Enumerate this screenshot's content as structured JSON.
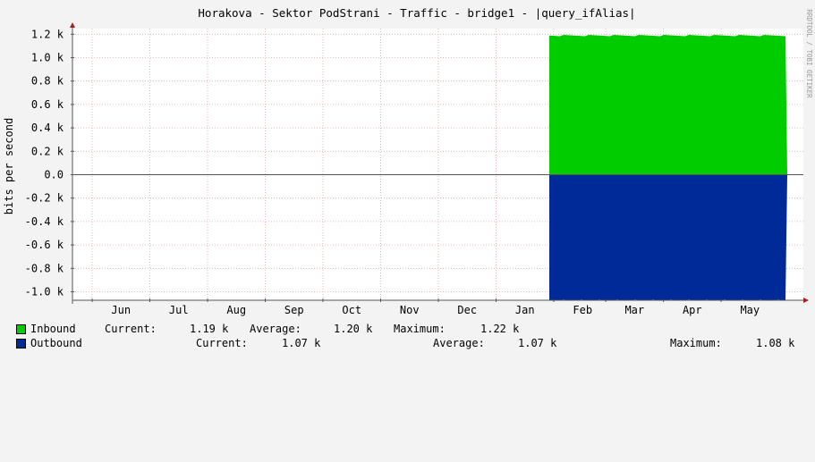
{
  "watermark": "RRDTOOL / TOBI OETIKER",
  "colors": {
    "background": "#f3f3f3",
    "plot_background": "#ffffff",
    "grid": "#e4a6a6",
    "axis": "#555555",
    "arrow": "#a02020",
    "inbound": "#00cc00",
    "outbound": "#002a97"
  },
  "chart_data": {
    "type": "area",
    "title": "Horakova - Sektor PodStrani - Traffic - bridge1 - |query_ifAlias|",
    "ylabel": "bits per second",
    "xlabel": "",
    "ylim": [
      -1080,
      1260
    ],
    "y_ticks": [
      {
        "value": 1200,
        "label": "1.2 k"
      },
      {
        "value": 1000,
        "label": "1.0 k"
      },
      {
        "value": 800,
        "label": "0.8 k"
      },
      {
        "value": 600,
        "label": "0.6 k"
      },
      {
        "value": 400,
        "label": "0.4 k"
      },
      {
        "value": 200,
        "label": "0.2 k"
      },
      {
        "value": 0,
        "label": "0.0"
      },
      {
        "value": -200,
        "label": "-0.2 k"
      },
      {
        "value": -400,
        "label": "-0.4 k"
      },
      {
        "value": -600,
        "label": "-0.6 k"
      },
      {
        "value": -800,
        "label": "-0.8 k"
      },
      {
        "value": -1000,
        "label": "-1.0 k"
      }
    ],
    "xlim": [
      0,
      12.5
    ],
    "months": [
      {
        "label": "Jun",
        "start": 0.0
      },
      {
        "label": "Jul",
        "start": 1.0
      },
      {
        "label": "Aug",
        "start": 2.0
      },
      {
        "label": "Sep",
        "start": 3.0
      },
      {
        "label": "Oct",
        "start": 4.0
      },
      {
        "label": "Nov",
        "start": 5.0
      },
      {
        "label": "Dec",
        "start": 6.0
      },
      {
        "label": "Jan",
        "start": 7.0
      },
      {
        "label": "Feb",
        "start": 8.0
      },
      {
        "label": "Mar",
        "start": 8.9
      },
      {
        "label": "Apr",
        "start": 9.9
      },
      {
        "label": "May",
        "start": 10.9
      }
    ],
    "series": [
      {
        "name": "Inbound",
        "direction": "up",
        "x_start": 7.93,
        "x_end": 13.05,
        "level": 1190,
        "current": "1.19 k",
        "average": "1.20 k",
        "maximum": "1.22 k"
      },
      {
        "name": "Outbound",
        "direction": "down",
        "x_start": 7.93,
        "x_end": 13.05,
        "level": 1070,
        "current": "1.07 k",
        "average": "1.07 k",
        "maximum": "1.08 k"
      }
    ]
  },
  "legend": {
    "current_label": "Current:",
    "average_label": "Average:",
    "maximum_label": "Maximum:"
  }
}
